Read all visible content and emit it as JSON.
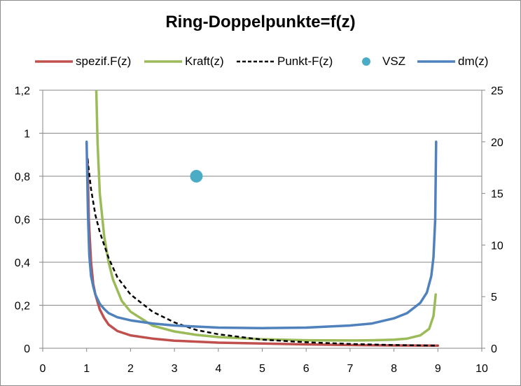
{
  "chart_data": {
    "type": "line",
    "title": "Ring-Doppelpunkte=f(z)",
    "xlim": [
      0,
      10
    ],
    "x_ticks": [
      "0",
      "1",
      "2",
      "3",
      "4",
      "5",
      "6",
      "7",
      "8",
      "9",
      "10"
    ],
    "y_left_lim": [
      0,
      1.2
    ],
    "y_left_ticks": [
      "0",
      "0,2",
      "0,4",
      "0,6",
      "0,8",
      "1",
      "1,2"
    ],
    "y_right_lim": [
      0,
      25
    ],
    "y_right_ticks": [
      "0",
      "5",
      "10",
      "15",
      "20",
      "25"
    ],
    "grid": "horizontal major (left axis)",
    "legend_position": "top",
    "series": [
      {
        "name": "spezif.F(z)",
        "color": "#c0504d",
        "axis": "left",
        "style": "solid",
        "x": [
          1.02,
          1.05,
          1.1,
          1.15,
          1.2,
          1.3,
          1.4,
          1.5,
          1.7,
          2.0,
          2.5,
          3.0,
          4.0,
          5.0,
          6.0,
          7.0,
          8.0,
          9.0
        ],
        "y": [
          0.88,
          0.6,
          0.4,
          0.3,
          0.25,
          0.18,
          0.14,
          0.11,
          0.08,
          0.06,
          0.045,
          0.035,
          0.026,
          0.022,
          0.018,
          0.015,
          0.013,
          0.012
        ]
      },
      {
        "name": "Kraft(z)",
        "color": "#9bbb59",
        "axis": "left",
        "style": "solid",
        "x": [
          1.22,
          1.25,
          1.3,
          1.4,
          1.5,
          1.6,
          1.8,
          2.0,
          2.5,
          3.0,
          3.5,
          4.0,
          5.0,
          6.0,
          7.0,
          7.5,
          8.0,
          8.3,
          8.6,
          8.8,
          8.9,
          8.95
        ],
        "y": [
          1.2,
          0.95,
          0.72,
          0.52,
          0.4,
          0.32,
          0.22,
          0.17,
          0.105,
          0.078,
          0.062,
          0.052,
          0.042,
          0.037,
          0.036,
          0.037,
          0.04,
          0.045,
          0.06,
          0.09,
          0.15,
          0.25
        ]
      },
      {
        "name": "Punkt-F(z)",
        "color": "#000000",
        "axis": "left",
        "style": "dashed",
        "x": [
          1.02,
          1.1,
          1.2,
          1.3,
          1.5,
          1.7,
          2.0,
          2.5,
          3.0,
          3.5,
          4.0,
          5.0,
          6.0,
          7.0,
          8.0,
          9.0
        ],
        "y": [
          0.88,
          0.74,
          0.62,
          0.54,
          0.42,
          0.33,
          0.25,
          0.17,
          0.12,
          0.085,
          0.065,
          0.04,
          0.028,
          0.02,
          0.015,
          0.012
        ]
      },
      {
        "name": "VSZ",
        "color": "#4bacc6",
        "axis": "left",
        "style": "marker",
        "x": [
          3.5
        ],
        "y": [
          0.8
        ]
      },
      {
        "name": "dm(z)",
        "color": "#4f81bd",
        "axis": "right",
        "style": "solid",
        "x": [
          1.0,
          1.03,
          1.06,
          1.1,
          1.15,
          1.2,
          1.3,
          1.4,
          1.5,
          1.7,
          2.0,
          2.5,
          3.0,
          3.5,
          4.0,
          5.0,
          6.0,
          7.0,
          7.5,
          8.0,
          8.3,
          8.6,
          8.75,
          8.85,
          8.9,
          8.94,
          8.96
        ],
        "y": [
          20,
          13,
          9,
          7,
          6,
          5.2,
          4.3,
          3.8,
          3.4,
          3.0,
          2.7,
          2.4,
          2.2,
          2.1,
          2.0,
          1.95,
          2.0,
          2.2,
          2.4,
          2.9,
          3.4,
          4.4,
          5.4,
          7.0,
          8.8,
          12.5,
          20
        ]
      }
    ]
  }
}
